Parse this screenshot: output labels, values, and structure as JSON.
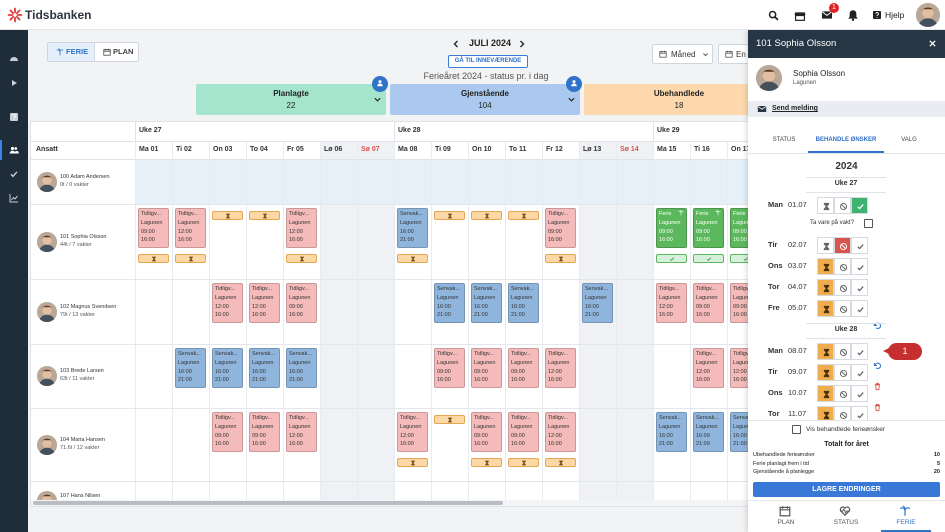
{
  "header": {
    "brand": "Tidsbanken",
    "mail_badge": 1,
    "help": "Hjelp"
  },
  "toolbar": {
    "modes": [
      {
        "label": "FERIE",
        "active": true
      },
      {
        "label": "PLAN"
      }
    ],
    "month": "JULI 2024",
    "today": "GÅ TIL INNEVÆRENDE",
    "view": "Måned",
    "view2": "En"
  },
  "summary": {
    "title": "Ferieåret 2024 - status pr. i dag",
    "cards": [
      {
        "label": "Planlagte",
        "value": 22,
        "color": "#a5e5cd",
        "badge": true
      },
      {
        "label": "Gjenstående",
        "value": 104,
        "color": "#abc9ee",
        "badge": true
      },
      {
        "label": "Ubehandlede",
        "value": 18,
        "color": "#fdd8ad"
      }
    ]
  },
  "calendar": {
    "employee_header": "Ansatt",
    "days": [
      {
        "label": "Ma 01",
        "week": "Uke 27"
      },
      {
        "label": "Ti 02"
      },
      {
        "label": "On 03"
      },
      {
        "label": "To 04"
      },
      {
        "label": "Fr 05"
      },
      {
        "label": "Lø 06",
        "weekend": true
      },
      {
        "label": "Sø 07",
        "weekend": true,
        "color": "#d9534f"
      },
      {
        "label": "Ma 08",
        "week": "Uke 28"
      },
      {
        "label": "Ti 09"
      },
      {
        "label": "On 10"
      },
      {
        "label": "To 11"
      },
      {
        "label": "Fr 12"
      },
      {
        "label": "Lø 13",
        "weekend": true
      },
      {
        "label": "Sø 14",
        "weekend": true,
        "color": "#d9534f"
      },
      {
        "label": "Ma 15",
        "week": "Uke 29"
      },
      {
        "label": "Ti 16"
      },
      {
        "label": "On 17"
      }
    ],
    "employees": [
      {
        "name": "100 Adam Andersen",
        "hours": "0t / 0 vakter",
        "highlight": true,
        "days": [
          null,
          null,
          null,
          null,
          null,
          null,
          null,
          null,
          null,
          null,
          null,
          null,
          null,
          null,
          null,
          null,
          null
        ]
      },
      {
        "name": "101 Sophia Olsson",
        "hours": "44t / 7 vakter",
        "days": [
          {
            "shift": {
              "name": "Tidligv...",
              "location": "Lagunen",
              "start": "09:00",
              "end": "16:00",
              "color": "#f5baba"
            },
            "request": "pending"
          },
          {
            "shift": {
              "name": "Tidligv...",
              "location": "Lagunen",
              "start": "12:00",
              "end": "16:00",
              "color": "#f5baba"
            },
            "request": "pending"
          },
          {
            "request": "pending"
          },
          {
            "request": "pending"
          },
          {
            "shift": {
              "name": "Tidligv...",
              "location": "Lagunen",
              "start": "12:00",
              "end": "16:00",
              "color": "#f5baba"
            },
            "request": "pending"
          },
          null,
          null,
          {
            "shift": {
              "name": "Senvak...",
              "location": "Lagunen",
              "start": "16:00",
              "end": "21:00",
              "color": "#8fb5dc"
            },
            "request": "pending"
          },
          {
            "request": "pending"
          },
          {
            "request": "pending"
          },
          {
            "request": "pending"
          },
          {
            "shift": {
              "name": "Tidligv...",
              "location": "Lagunen",
              "start": "09:00",
              "end": "16:00",
              "color": "#f5baba"
            },
            "request": "pending"
          },
          null,
          null,
          {
            "shift": {
              "name": "Ferie",
              "location": "Lagunen",
              "start": "09:00",
              "end": "16:00",
              "color": "#5cb85c",
              "text": "#ffffff"
            },
            "request": "approved"
          },
          {
            "shift": {
              "name": "Ferie",
              "location": "Lagunen",
              "start": "09:00",
              "end": "16:00",
              "color": "#5cb85c",
              "text": "#ffffff"
            },
            "request": "approved"
          },
          {
            "shift": {
              "name": "Ferie",
              "location": "Lagunen",
              "start": "09:00",
              "end": "16:00",
              "color": "#5cb85c",
              "text": "#ffffff"
            },
            "request": "approved"
          }
        ]
      },
      {
        "name": "102 Magnus Svendsen",
        "hours": "79t / 13 vakter",
        "days": [
          null,
          null,
          {
            "shift": {
              "name": "Tidligv...",
              "location": "Lagunen",
              "start": "12:00",
              "end": "16:00",
              "color": "#f5baba"
            }
          },
          {
            "shift": {
              "name": "Tidligv...",
              "location": "Lagunen",
              "start": "12:00",
              "end": "16:00",
              "color": "#f5baba"
            }
          },
          {
            "shift": {
              "name": "Tidligv...",
              "location": "Lagunen",
              "start": "09:00",
              "end": "16:00",
              "color": "#f5baba"
            }
          },
          null,
          null,
          null,
          {
            "shift": {
              "name": "Senvak...",
              "location": "Lagunen",
              "start": "16:00",
              "end": "21:00",
              "color": "#8fb5dc"
            }
          },
          {
            "shift": {
              "name": "Senvak...",
              "location": "Lagunen",
              "start": "16:00",
              "end": "21:00",
              "color": "#8fb5dc"
            }
          },
          {
            "shift": {
              "name": "Senvak...",
              "location": "Lagunen",
              "start": "16:00",
              "end": "21:00",
              "color": "#8fb5dc"
            }
          },
          null,
          {
            "shift": {
              "name": "Senvak...",
              "location": "Lagunen",
              "start": "16:00",
              "end": "21:00",
              "color": "#8fb5dc"
            }
          },
          null,
          {
            "shift": {
              "name": "Tidligv...",
              "location": "Lagunen",
              "start": "12:00",
              "end": "16:00",
              "color": "#f5baba"
            }
          },
          {
            "shift": {
              "name": "Tidligv...",
              "location": "Lagunen",
              "start": "09:00",
              "end": "16:00",
              "color": "#f5baba"
            }
          },
          {
            "shift": {
              "name": "Tidligv...",
              "location": "Lagunen",
              "start": "09:00",
              "end": "16:00",
              "color": "#f5baba"
            }
          }
        ]
      },
      {
        "name": "103 Brede Larsen",
        "hours": "63t / 11 vakter",
        "days": [
          null,
          {
            "shift": {
              "name": "Senvak...",
              "location": "Lagunen",
              "start": "16:00",
              "end": "21:00",
              "color": "#8fb5dc"
            }
          },
          {
            "shift": {
              "name": "Senvak...",
              "location": "Lagunen",
              "start": "16:00",
              "end": "21:00",
              "color": "#8fb5dc"
            }
          },
          {
            "shift": {
              "name": "Senvak...",
              "location": "Lagunen",
              "start": "16:00",
              "end": "21:00",
              "color": "#8fb5dc"
            }
          },
          {
            "shift": {
              "name": "Senvak...",
              "location": "Lagunen",
              "start": "16:00",
              "end": "21:00",
              "color": "#8fb5dc"
            }
          },
          null,
          null,
          null,
          {
            "shift": {
              "name": "Tidligv...",
              "location": "Lagunen",
              "start": "09:00",
              "end": "16:00",
              "color": "#f5baba"
            }
          },
          {
            "shift": {
              "name": "Tidligv...",
              "location": "Lagunen",
              "start": "09:00",
              "end": "16:00",
              "color": "#f5baba"
            }
          },
          {
            "shift": {
              "name": "Tidligv...",
              "location": "Lagunen",
              "start": "09:00",
              "end": "16:00",
              "color": "#f5baba"
            }
          },
          {
            "shift": {
              "name": "Tidligv...",
              "location": "Lagunen",
              "start": "12:00",
              "end": "16:00",
              "color": "#f5baba"
            }
          },
          null,
          null,
          null,
          {
            "shift": {
              "name": "Tidligv...",
              "location": "Lagunen",
              "start": "12:00",
              "end": "16:00",
              "color": "#f5baba"
            }
          },
          {
            "shift": {
              "name": "Tidligv...",
              "location": "Lagunen",
              "start": "12:00",
              "end": "16:00",
              "color": "#f5baba"
            }
          }
        ]
      },
      {
        "name": "104 Maria Hansen",
        "hours": "71.6t / 12 vakter",
        "days": [
          null,
          null,
          {
            "shift": {
              "name": "Tidligv...",
              "location": "Lagunen",
              "start": "09:00",
              "end": "16:00",
              "color": "#f5baba"
            }
          },
          {
            "shift": {
              "name": "Tidligv...",
              "location": "Lagunen",
              "start": "09:00",
              "end": "16:00",
              "color": "#f5baba"
            }
          },
          {
            "shift": {
              "name": "Tidligv...",
              "location": "Lagunen",
              "start": "12:00",
              "end": "16:00",
              "color": "#f5baba"
            }
          },
          null,
          null,
          {
            "shift": {
              "name": "Tidligv...",
              "location": "Lagunen",
              "start": "12:00",
              "end": "16:00",
              "color": "#f5baba"
            },
            "request": "pending"
          },
          {
            "request": "pending"
          },
          {
            "shift": {
              "name": "Tidligv...",
              "location": "Lagunen",
              "start": "09:00",
              "end": "16:00",
              "color": "#f5baba"
            },
            "request": "pending"
          },
          {
            "shift": {
              "name": "Tidligv...",
              "location": "Lagunen",
              "start": "09:00",
              "end": "16:00",
              "color": "#f5baba"
            },
            "request": "pending"
          },
          {
            "shift": {
              "name": "Tidligv...",
              "location": "Lagunen",
              "start": "12:00",
              "end": "16:00",
              "color": "#f5baba"
            },
            "request": "pending"
          },
          null,
          null,
          {
            "shift": {
              "name": "Senvak...",
              "location": "Lagunen",
              "start": "16:00",
              "end": "21:00",
              "color": "#8fb5dc"
            }
          },
          {
            "shift": {
              "name": "Senvak...",
              "location": "Lagunen",
              "start": "16:00",
              "end": "21:00",
              "color": "#8fb5dc"
            }
          },
          {
            "shift": {
              "name": "Senvak...",
              "location": "Lagunen",
              "start": "16:00",
              "end": "21:00",
              "color": "#8fb5dc"
            }
          }
        ]
      },
      {
        "name": "107 Hans Nilsen",
        "hours": "0t / 0 vakter",
        "days": [
          null,
          null,
          null,
          null,
          null,
          null,
          null,
          null,
          null,
          null,
          null,
          null,
          null,
          null,
          null,
          null,
          null
        ]
      }
    ]
  },
  "panel": {
    "title": "101 Sophia Olsson",
    "name": "Sophia Olsson",
    "location": "Lagunen",
    "message": "Send melding",
    "tabs": [
      {
        "label": "STATUS"
      },
      {
        "label": "BEHANDLE ØNSKER",
        "active": true
      },
      {
        "label": "VALG"
      }
    ],
    "year": "2024",
    "weeks": [
      {
        "label": "Uke 27",
        "days": [
          {
            "day": "Man",
            "date": "01.07",
            "state": "approved",
            "note": "Ta vare på vakt?"
          },
          {
            "day": "Tir",
            "date": "02.07",
            "state": "rejected"
          },
          {
            "day": "Ons",
            "date": "03.07",
            "state": "pending"
          },
          {
            "day": "Tor",
            "date": "04.07",
            "state": "pending"
          },
          {
            "day": "Fre",
            "date": "05.07",
            "state": "pending"
          }
        ]
      },
      {
        "label": "Uke 28",
        "days": [
          {
            "day": "Man",
            "date": "08.07",
            "state": "pending",
            "callout": "1"
          },
          {
            "day": "Tir",
            "date": "09.07",
            "state": "pending"
          },
          {
            "day": "Ons",
            "date": "10.07",
            "state": "pending"
          },
          {
            "day": "Tor",
            "date": "11.07",
            "state": "pending"
          }
        ]
      }
    ],
    "show_processed": "Vis behandlede ferieønsker",
    "totals_title": "Totalt for året",
    "totals": [
      {
        "label": "Ubehandlede ferieønsker",
        "value": 10
      },
      {
        "label": "Ferie planlagt frem i tid",
        "value": 5
      },
      {
        "label": "Gjenstående å planlegge",
        "value": 20
      }
    ],
    "save": "LAGRE ENDRINGER",
    "bottom_tabs": [
      {
        "label": "PLAN"
      },
      {
        "label": "STATUS"
      },
      {
        "label": "FERIE",
        "active": true
      }
    ]
  }
}
